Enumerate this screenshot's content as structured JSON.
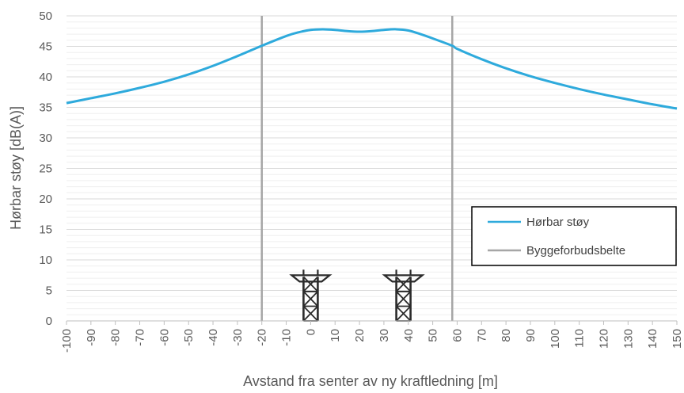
{
  "chart_data": {
    "type": "line",
    "xlabel": "Avstand fra senter av ny kraftledning [m]",
    "ylabel": "Hørbar støy [dB(A)]",
    "xlim": [
      -100,
      150
    ],
    "ylim": [
      0,
      50
    ],
    "x_ticks": [
      -100,
      -90,
      -80,
      -70,
      -60,
      -50,
      -40,
      -30,
      -20,
      -10,
      0,
      10,
      20,
      30,
      40,
      50,
      60,
      70,
      80,
      90,
      100,
      110,
      120,
      130,
      140,
      150
    ],
    "y_ticks": [
      0,
      5,
      10,
      15,
      20,
      25,
      30,
      35,
      40,
      45,
      50
    ],
    "grid": "horizontal",
    "legend_position": "bottom-right",
    "series": [
      {
        "name": "Hørbar støy",
        "color": "#2eaadc",
        "x": [
          -100,
          -90,
          -80,
          -70,
          -60,
          -50,
          -40,
          -30,
          -20,
          -10,
          -5,
          0,
          5,
          10,
          15,
          20,
          25,
          30,
          35,
          40,
          45,
          50,
          58,
          60,
          70,
          80,
          90,
          100,
          110,
          120,
          130,
          140,
          150
        ],
        "y": [
          35.7,
          36.5,
          37.3,
          38.2,
          39.2,
          40.4,
          41.8,
          43.4,
          45.1,
          46.7,
          47.3,
          47.7,
          47.8,
          47.7,
          47.5,
          47.4,
          47.5,
          47.7,
          47.8,
          47.6,
          47.0,
          46.3,
          45.1,
          44.6,
          42.9,
          41.4,
          40.1,
          39.0,
          38.0,
          37.1,
          36.3,
          35.5,
          34.8
        ]
      }
    ],
    "vertical_lines": {
      "name": "Byggeforbudsbelte",
      "color": "#a6a6a6",
      "x": [
        -20,
        58
      ]
    },
    "towers": {
      "icon": "pylon-icon",
      "x": [
        0,
        38
      ],
      "height": 8
    }
  }
}
